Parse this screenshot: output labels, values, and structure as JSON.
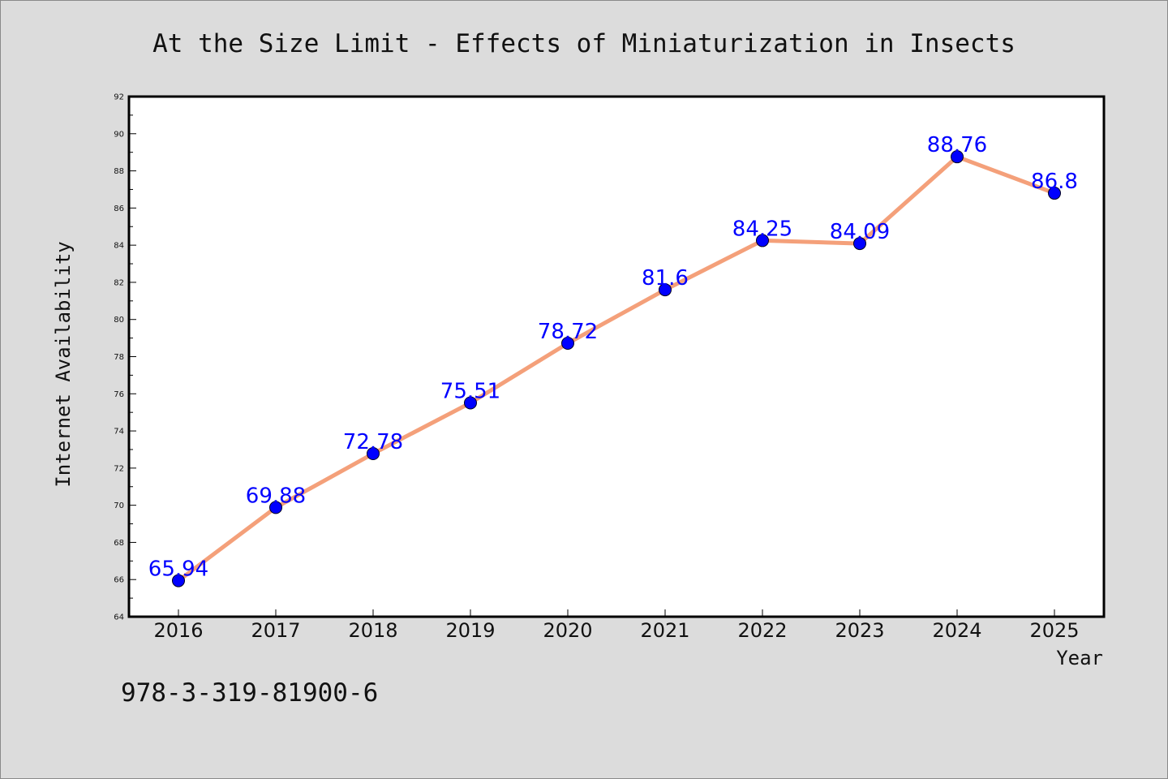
{
  "footnote": "978-3-319-81900-6",
  "chart_data": {
    "type": "line",
    "title": "At the Size Limit - Effects of Miniaturization in Insects",
    "xlabel": "Year",
    "ylabel": "Internet Availability",
    "categories": [
      "2016",
      "2017",
      "2018",
      "2019",
      "2020",
      "2021",
      "2022",
      "2023",
      "2024",
      "2025"
    ],
    "values": [
      65.94,
      69.88,
      72.78,
      75.51,
      78.72,
      81.6,
      84.25,
      84.09,
      88.76,
      86.8
    ],
    "data_labels": [
      "65.94",
      "69.88",
      "72.78",
      "75.51",
      "78.72",
      "81.6",
      "84.25",
      "84.09",
      "88.76",
      "86.8"
    ],
    "ylim": [
      64,
      92
    ],
    "yticks": [
      64,
      66,
      68,
      70,
      72,
      74,
      76,
      78,
      80,
      82,
      84,
      86,
      88,
      90,
      92
    ],
    "grid": false,
    "legend": "none",
    "colors": {
      "line": "#f4a07a",
      "marker": "#0000ff",
      "label": "#0000ff",
      "background": "#dcdcdc",
      "plot_background": "#ffffff"
    }
  }
}
